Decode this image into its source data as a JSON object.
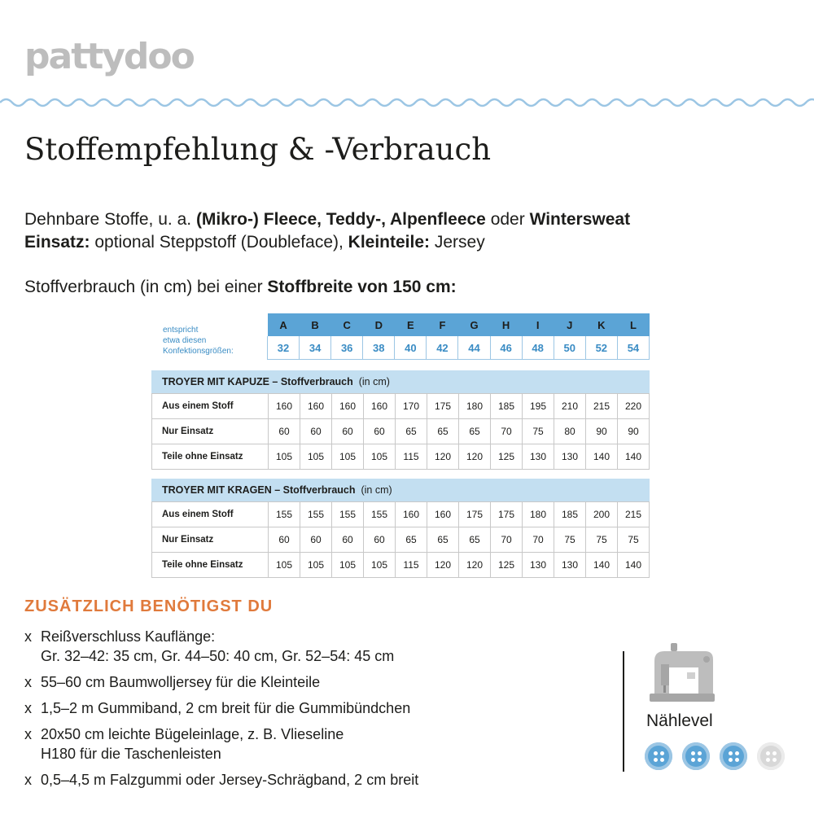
{
  "logo": "pattydoo",
  "title": "Stoffempfehlung & -Verbrauch",
  "fabric": {
    "line1_a": "Dehnbare Stoffe, u. a. ",
    "line1_b": "(Mikro-) Fleece, Teddy-, Alpenfleece",
    "line1_c": " oder ",
    "line1_d": "Wintersweat",
    "line2_a": "Einsatz:",
    "line2_b": " optional Steppstoff (Doubleface), ",
    "line2_c": "Kleinteile:",
    "line2_d": " Jersey"
  },
  "usage": {
    "prefix": "Stoffverbrauch (in cm) bei einer ",
    "bold": "Stoffbreite von 150 cm:"
  },
  "sizes": {
    "caption_1": "entspricht",
    "caption_2": "etwa diesen",
    "caption_3": "Konfektionsgrößen:",
    "letters": [
      "A",
      "B",
      "C",
      "D",
      "E",
      "F",
      "G",
      "H",
      "I",
      "J",
      "K",
      "L"
    ],
    "numbers": [
      "32",
      "34",
      "36",
      "38",
      "40",
      "42",
      "44",
      "46",
      "48",
      "50",
      "52",
      "54"
    ]
  },
  "tables": [
    {
      "title": "TROYER MIT KAPUZE – Stoffverbrauch",
      "unit": "(in cm)",
      "rows": [
        {
          "label": "Aus einem Stoff",
          "values": [
            "160",
            "160",
            "160",
            "160",
            "170",
            "175",
            "180",
            "185",
            "195",
            "210",
            "215",
            "220"
          ]
        },
        {
          "label": "Nur Einsatz",
          "values": [
            "60",
            "60",
            "60",
            "60",
            "65",
            "65",
            "65",
            "70",
            "75",
            "80",
            "90",
            "90"
          ]
        },
        {
          "label": "Teile ohne Einsatz",
          "values": [
            "105",
            "105",
            "105",
            "105",
            "115",
            "120",
            "120",
            "125",
            "130",
            "130",
            "140",
            "140"
          ]
        }
      ]
    },
    {
      "title": "TROYER MIT KRAGEN – Stoffverbrauch",
      "unit": "(in cm)",
      "rows": [
        {
          "label": "Aus einem Stoff",
          "values": [
            "155",
            "155",
            "155",
            "155",
            "160",
            "160",
            "175",
            "175",
            "180",
            "185",
            "200",
            "215"
          ]
        },
        {
          "label": "Nur Einsatz",
          "values": [
            "60",
            "60",
            "60",
            "60",
            "65",
            "65",
            "65",
            "70",
            "70",
            "75",
            "75",
            "75"
          ]
        },
        {
          "label": "Teile ohne Einsatz",
          "values": [
            "105",
            "105",
            "105",
            "105",
            "115",
            "120",
            "120",
            "125",
            "130",
            "130",
            "140",
            "140"
          ]
        }
      ]
    }
  ],
  "extras": {
    "title": "ZUSÄTZLICH BENÖTIGST DU",
    "bullet": "x",
    "items": [
      {
        "line1": "Reißverschluss Kauflänge:",
        "line2": "Gr. 32–42: 35 cm, Gr. 44–50: 40 cm, Gr. 52–54: 45 cm"
      },
      {
        "line1": "55–60 cm Baumwolljersey für die Kleinteile",
        "line2": ""
      },
      {
        "line1": "1,5–2 m Gummiband, 2 cm breit für die Gummibündchen",
        "line2": ""
      },
      {
        "line1": "20x50 cm leichte Bügeleinlage, z. B. Vlieseline",
        "line2": "H180 für die Taschenleisten"
      },
      {
        "line1": "0,5–4,5 m Falzgummi oder Jersey-Schrägband, 2 cm breit",
        "line2": ""
      }
    ]
  },
  "level": {
    "label": "Nählevel",
    "icon": "sewing-machine-icon",
    "value": 3,
    "max": 4,
    "color_on": "#5ba4d6",
    "color_off": "#d8d8d8"
  },
  "colors": {
    "accent_orange": "#e07a3c",
    "header_blue": "#5ba4d6",
    "section_blue": "#c3dff1",
    "wave_blue": "#9cc6e4"
  }
}
